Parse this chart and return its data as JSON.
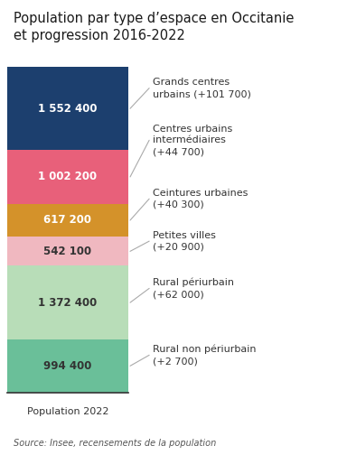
{
  "title": "Population par type d’espace en Occitanie\net progression 2016-2022",
  "source": "Source: Insee, recensements de la population",
  "xlabel": "Population 2022",
  "segments": [
    {
      "label": "Grands centres\nurbains (+101 700)",
      "value": 1552400,
      "display": "1 552 400",
      "color": "#1c3f6e",
      "text_color": "white"
    },
    {
      "label": "Centres urbains\nintermediaires\n(+44 700)",
      "display_label": "Centres urbains\nintermédiaires\n(+44 700)",
      "value": 1002200,
      "display": "1 002 200",
      "color": "#e8607a",
      "text_color": "white"
    },
    {
      "label": "Ceintures urbaines\n(+40 300)",
      "value": 617200,
      "display": "617 200",
      "color": "#d4922a",
      "text_color": "white"
    },
    {
      "label": "Petites villes\n(+20 900)",
      "value": 542100,
      "display": "542 100",
      "color": "#f0b8c0",
      "text_color": "#333333"
    },
    {
      "label": "Rural périurbain\n(+62 000)",
      "value": 1372400,
      "display": "1 372 400",
      "color": "#b8ddb8",
      "text_color": "#333333"
    },
    {
      "label": "Rural non périurbain\n(+2 700)",
      "value": 994400,
      "display": "994 400",
      "color": "#6abf99",
      "text_color": "#333333"
    }
  ],
  "label_texts": [
    "Grands centres\nurbains (+101 700)",
    "Centres urbains\nintermédiaires\n(+44 700)",
    "Ceintures urbaines\n(+40 300)",
    "Petites villes\n(+20 900)",
    "Rural périurbain\n(+62 000)",
    "Rural non périurbain\n(+2 700)"
  ],
  "bg_color": "#ffffff",
  "title_fontsize": 10.5,
  "label_fontsize": 8,
  "value_fontsize": 8.5,
  "source_fontsize": 7
}
